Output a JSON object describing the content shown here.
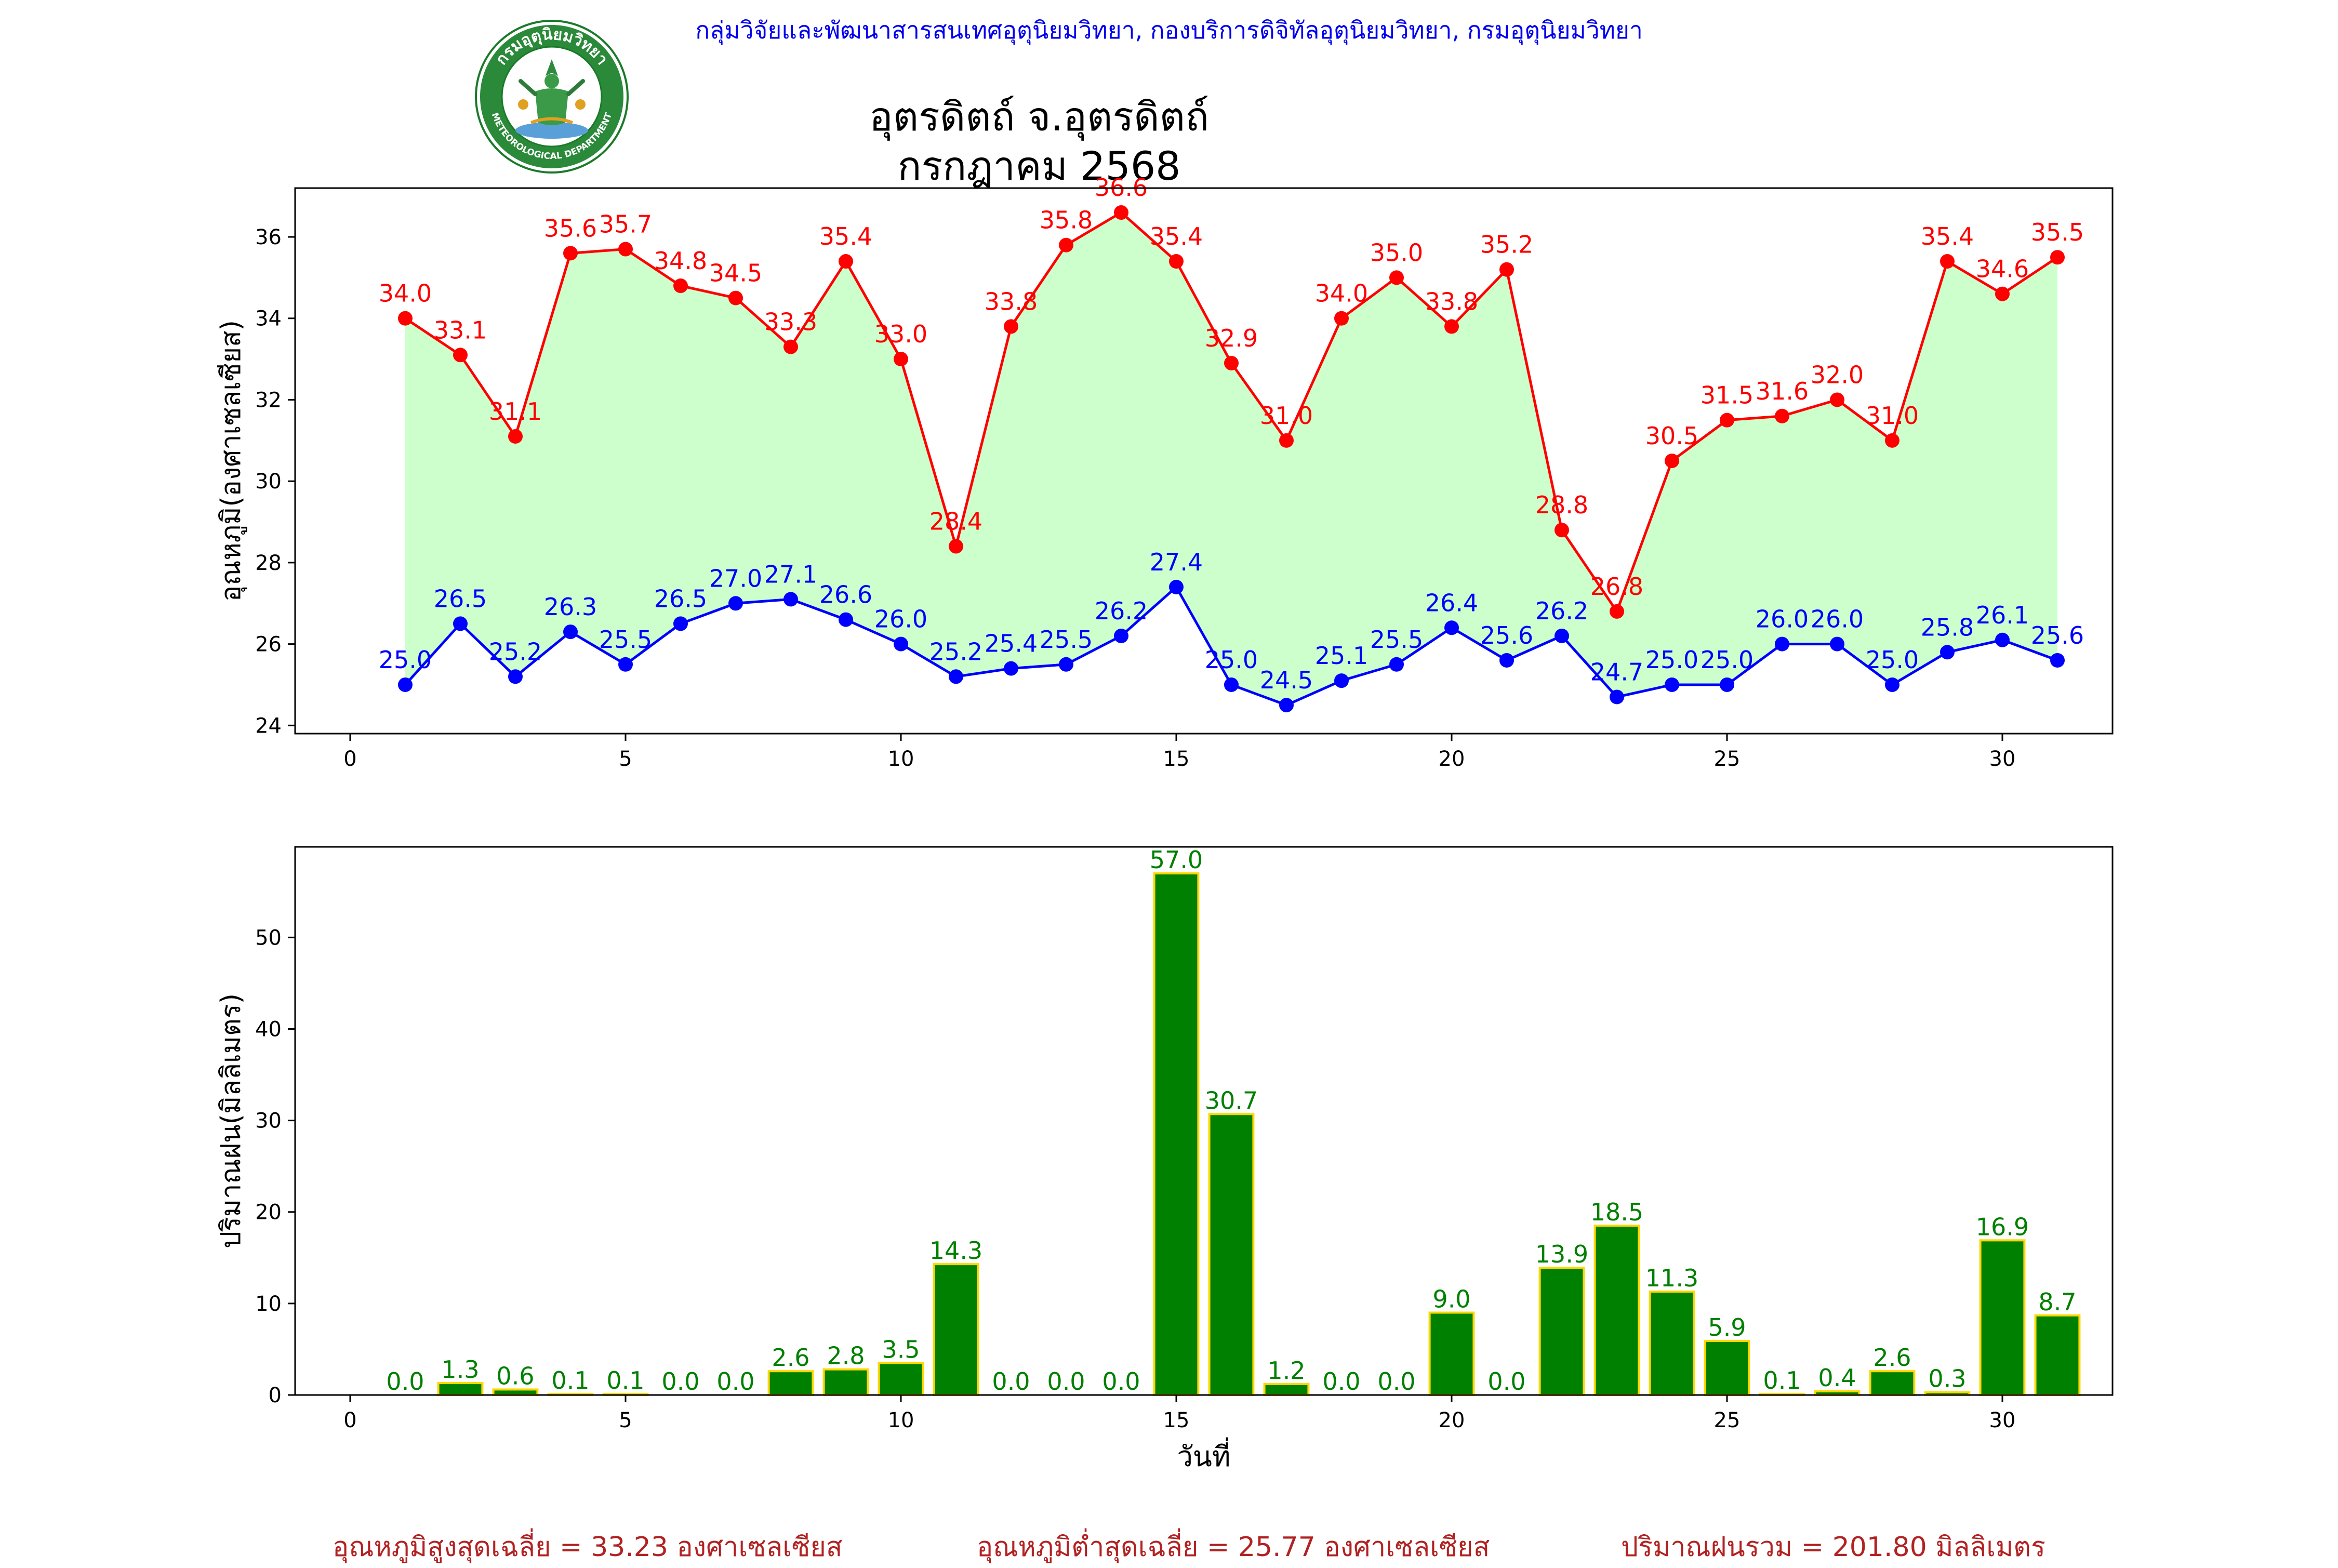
{
  "header": {
    "agency": "กลุ่มวิจัยและพัฒนาสารสนเทศอุตุนิยมวิทยา, กองบริการดิจิทัลอุตุนิยมวิทยา, กรมอุตุนิยมวิทยา",
    "title_line1": "อุตรดิตถ์ จ.อุตรดิตถ์",
    "title_line2": "กรกฎาคม 2568"
  },
  "logo": {
    "icon": "seal-icon",
    "text_top": "กรมอุตุนิยมวิทยา",
    "text_bottom": "METEOROLOGICAL DEPARTMENT"
  },
  "chart_data": [
    {
      "type": "line",
      "ylabel": "อุณหภูมิ(องศาเซลเซียส)",
      "xlim": [
        -1,
        32
      ],
      "ylim": [
        23.8,
        37.2
      ],
      "yticks": [
        24,
        26,
        28,
        30,
        32,
        34,
        36
      ],
      "xticks": [
        0,
        5,
        10,
        15,
        20,
        25,
        30
      ],
      "x": [
        1,
        2,
        3,
        4,
        5,
        6,
        7,
        8,
        9,
        10,
        11,
        12,
        13,
        14,
        15,
        16,
        17,
        18,
        19,
        20,
        21,
        22,
        23,
        24,
        25,
        26,
        27,
        28,
        29,
        30,
        31
      ],
      "fill_between": true,
      "fill_color": "#ccffcc",
      "series": [
        {
          "color": "#ff0000",
          "values": [
            34.0,
            33.1,
            31.1,
            35.6,
            35.7,
            34.8,
            34.5,
            33.3,
            35.4,
            33.0,
            28.4,
            33.8,
            35.8,
            36.6,
            35.4,
            32.9,
            31.0,
            34.0,
            35.0,
            33.8,
            35.2,
            28.8,
            26.8,
            30.5,
            31.5,
            31.6,
            32.0,
            31.0,
            35.4,
            34.6,
            35.5
          ]
        },
        {
          "color": "#0000ff",
          "values": [
            25.0,
            26.5,
            25.2,
            26.3,
            25.5,
            26.5,
            27.0,
            27.1,
            26.6,
            26.0,
            25.2,
            25.4,
            25.5,
            26.2,
            27.4,
            25.0,
            24.5,
            25.1,
            25.5,
            26.4,
            25.6,
            26.2,
            24.7,
            25.0,
            25.0,
            26.0,
            26.0,
            25.0,
            25.8,
            26.1,
            25.6
          ]
        }
      ]
    },
    {
      "type": "bar",
      "xlabel": "วันที่",
      "ylabel": "ปริมาณฝน(มิลลิเมตร)",
      "xlim": [
        -1,
        32
      ],
      "ylim": [
        0,
        59.9
      ],
      "yticks": [
        0,
        10,
        20,
        30,
        40,
        50
      ],
      "xticks": [
        0,
        5,
        10,
        15,
        20,
        25,
        30
      ],
      "bar_color": "#008000",
      "edge_color": "#ffd700",
      "label_color": "#008000",
      "categories": [
        1,
        2,
        3,
        4,
        5,
        6,
        7,
        8,
        9,
        10,
        11,
        12,
        13,
        14,
        15,
        16,
        17,
        18,
        19,
        20,
        21,
        22,
        23,
        24,
        25,
        26,
        27,
        28,
        29,
        30,
        31
      ],
      "values": [
        0.0,
        1.3,
        0.6,
        0.1,
        0.1,
        0.0,
        0.0,
        2.6,
        2.8,
        3.5,
        14.3,
        0.0,
        0.0,
        0.0,
        57.0,
        30.7,
        1.2,
        0.0,
        0.0,
        9.0,
        0.0,
        13.9,
        18.5,
        11.3,
        5.9,
        0.1,
        0.4,
        2.6,
        0.3,
        16.9,
        8.7
      ]
    }
  ],
  "summary": {
    "avg_max": "อุณหภูมิสูงสุดเฉลี่ย = 33.23 องศาเซลเซียส",
    "avg_min": "อุณหภูมิต่ำสุดเฉลี่ย = 25.77 องศาเซลเซียส",
    "rain_total": "ปริมาณฝนรวม = 201.80 มิลลิเมตร"
  }
}
